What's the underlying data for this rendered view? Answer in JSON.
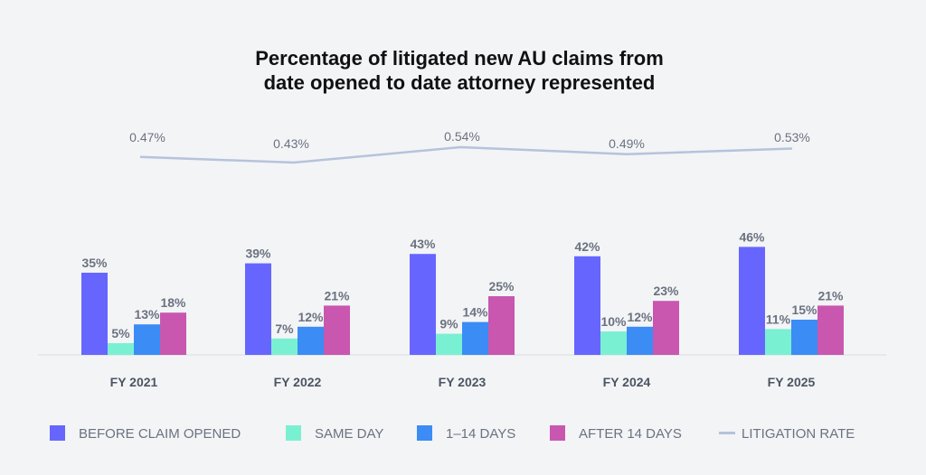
{
  "chart_data": {
    "type": "bar",
    "title": [
      "Percentage of litigated new AU claims from",
      "date opened to date attorney represented"
    ],
    "categories": [
      "FY 2021",
      "FY 2022",
      "FY 2023",
      "FY 2024",
      "FY 2025"
    ],
    "series": [
      {
        "name": "BEFORE CLAIM OPENED",
        "color": "#6666ff",
        "values": [
          35,
          39,
          43,
          42,
          46
        ]
      },
      {
        "name": "SAME DAY",
        "color": "#7af0d2",
        "values": [
          5,
          7,
          9,
          10,
          11
        ]
      },
      {
        "name": "1–14 DAYS",
        "color": "#3b8cf5",
        "values": [
          13,
          12,
          14,
          12,
          15
        ]
      },
      {
        "name": "AFTER 14 DAYS",
        "color": "#c957b0",
        "values": [
          18,
          21,
          25,
          23,
          21
        ]
      }
    ],
    "line": {
      "name": "LITIGATION RATE",
      "color": "#b5c3dc",
      "values": [
        0.47,
        0.43,
        0.54,
        0.49,
        0.53
      ]
    },
    "unit": "%",
    "legend": "bottom"
  }
}
